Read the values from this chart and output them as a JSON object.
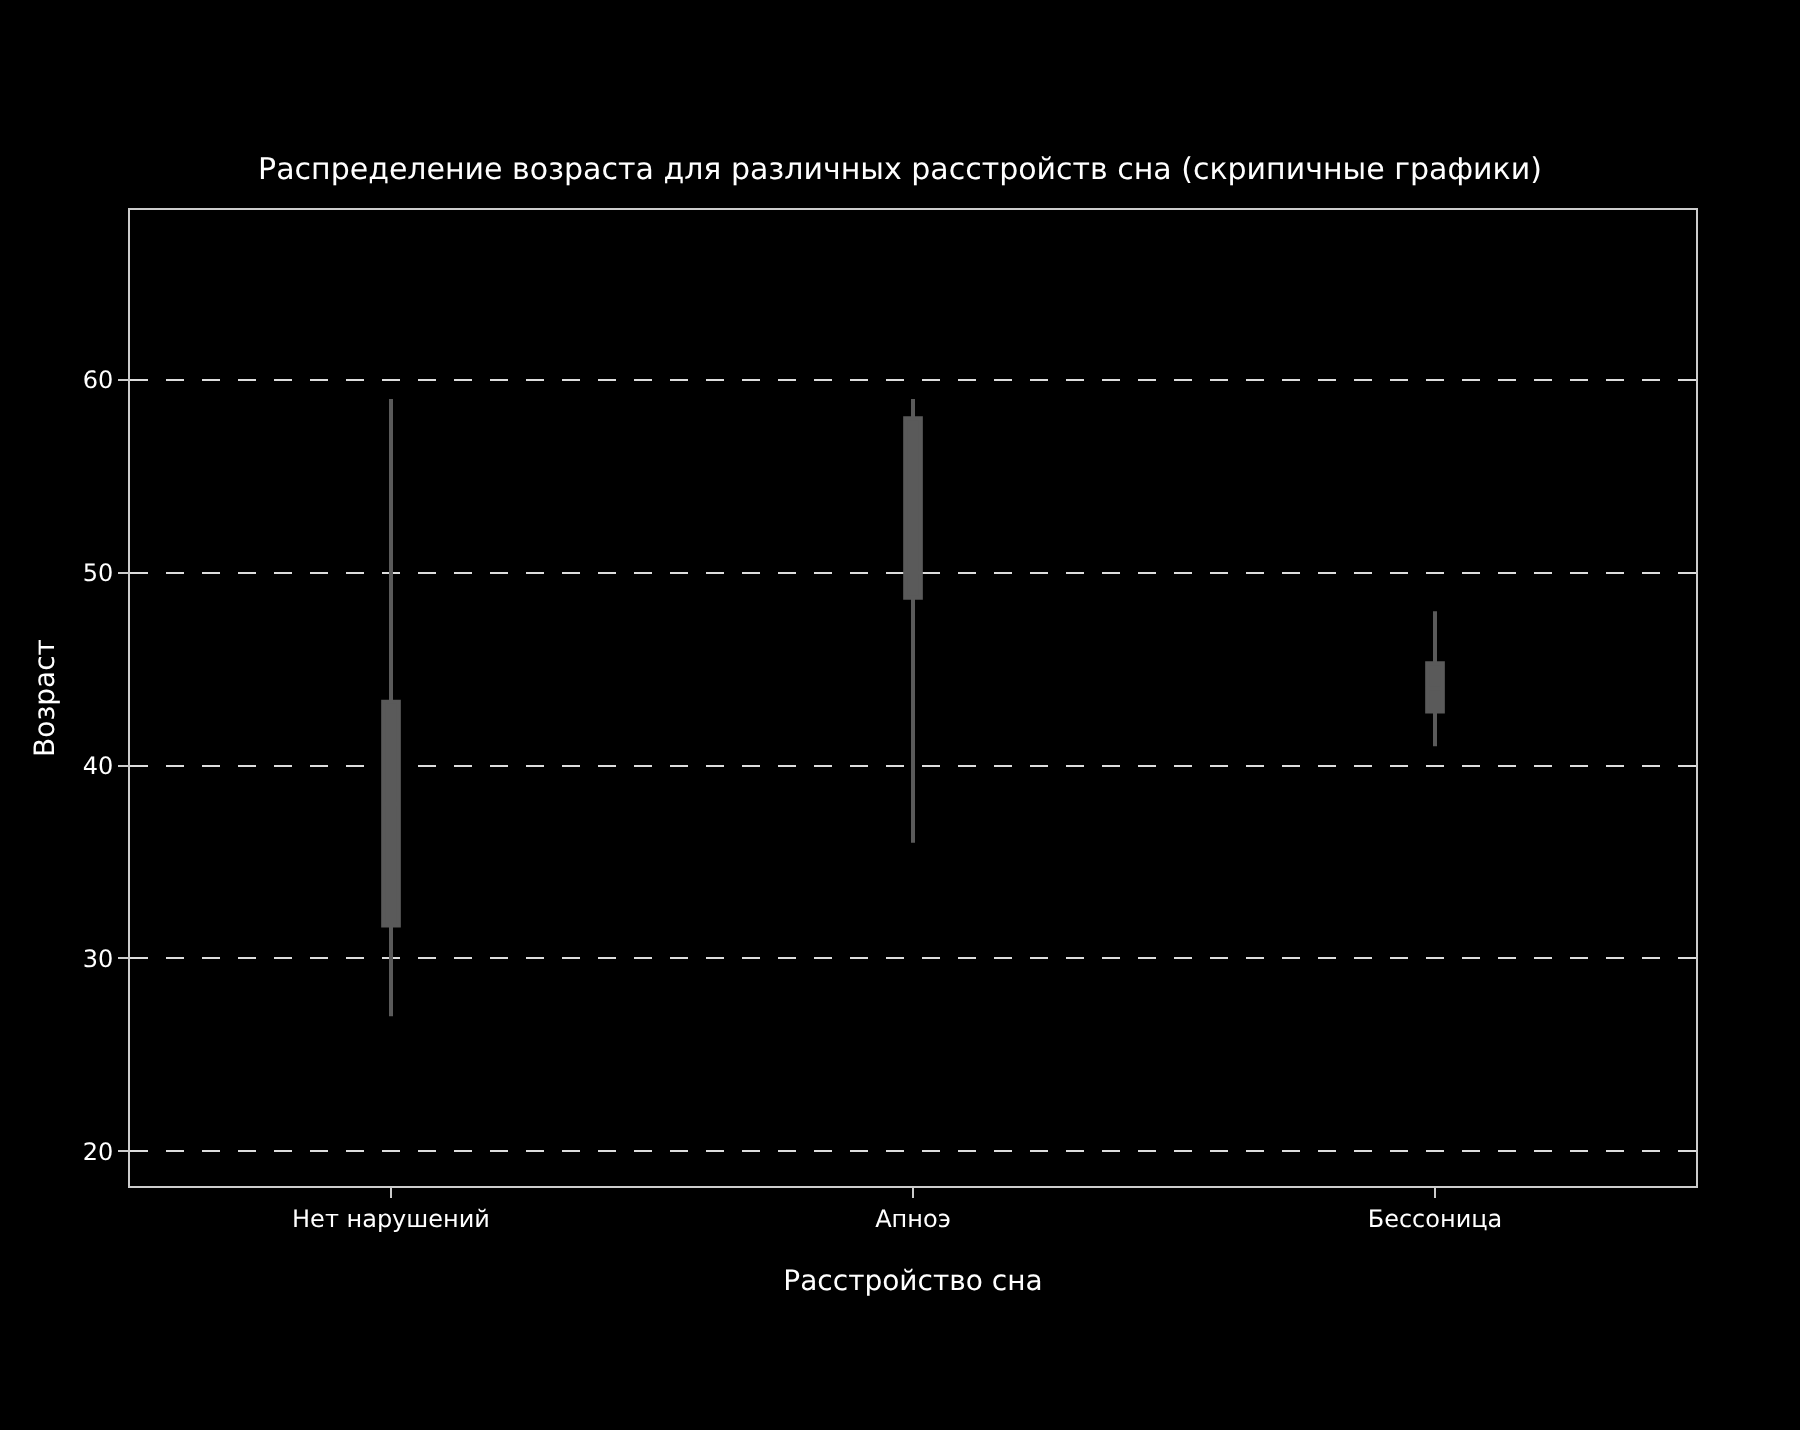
{
  "chart_data": {
    "type": "box",
    "title": "Распределение возраста для различных расстройств сна (скрипичные графики)",
    "xlabel": "Расстройство сна",
    "ylabel": "Возраст",
    "categories": [
      "Нет нарушений",
      "Апноэ",
      "Бессоница"
    ],
    "series": [
      {
        "color": "#5a5a5a",
        "boxes": [
          {
            "low": 27,
            "q1": 31.7,
            "median": 38,
            "q3": 43.3,
            "high": 59
          },
          {
            "low": 36,
            "q1": 48.7,
            "median": 50,
            "q3": 58,
            "high": 59
          },
          {
            "low": 41,
            "q1": 42.8,
            "median": 44,
            "q3": 45.3,
            "high": 48
          }
        ]
      }
    ],
    "ylim": [
      18.2,
      68.8
    ],
    "yticks": [
      20,
      30,
      40,
      50,
      60
    ],
    "grid": "y"
  }
}
